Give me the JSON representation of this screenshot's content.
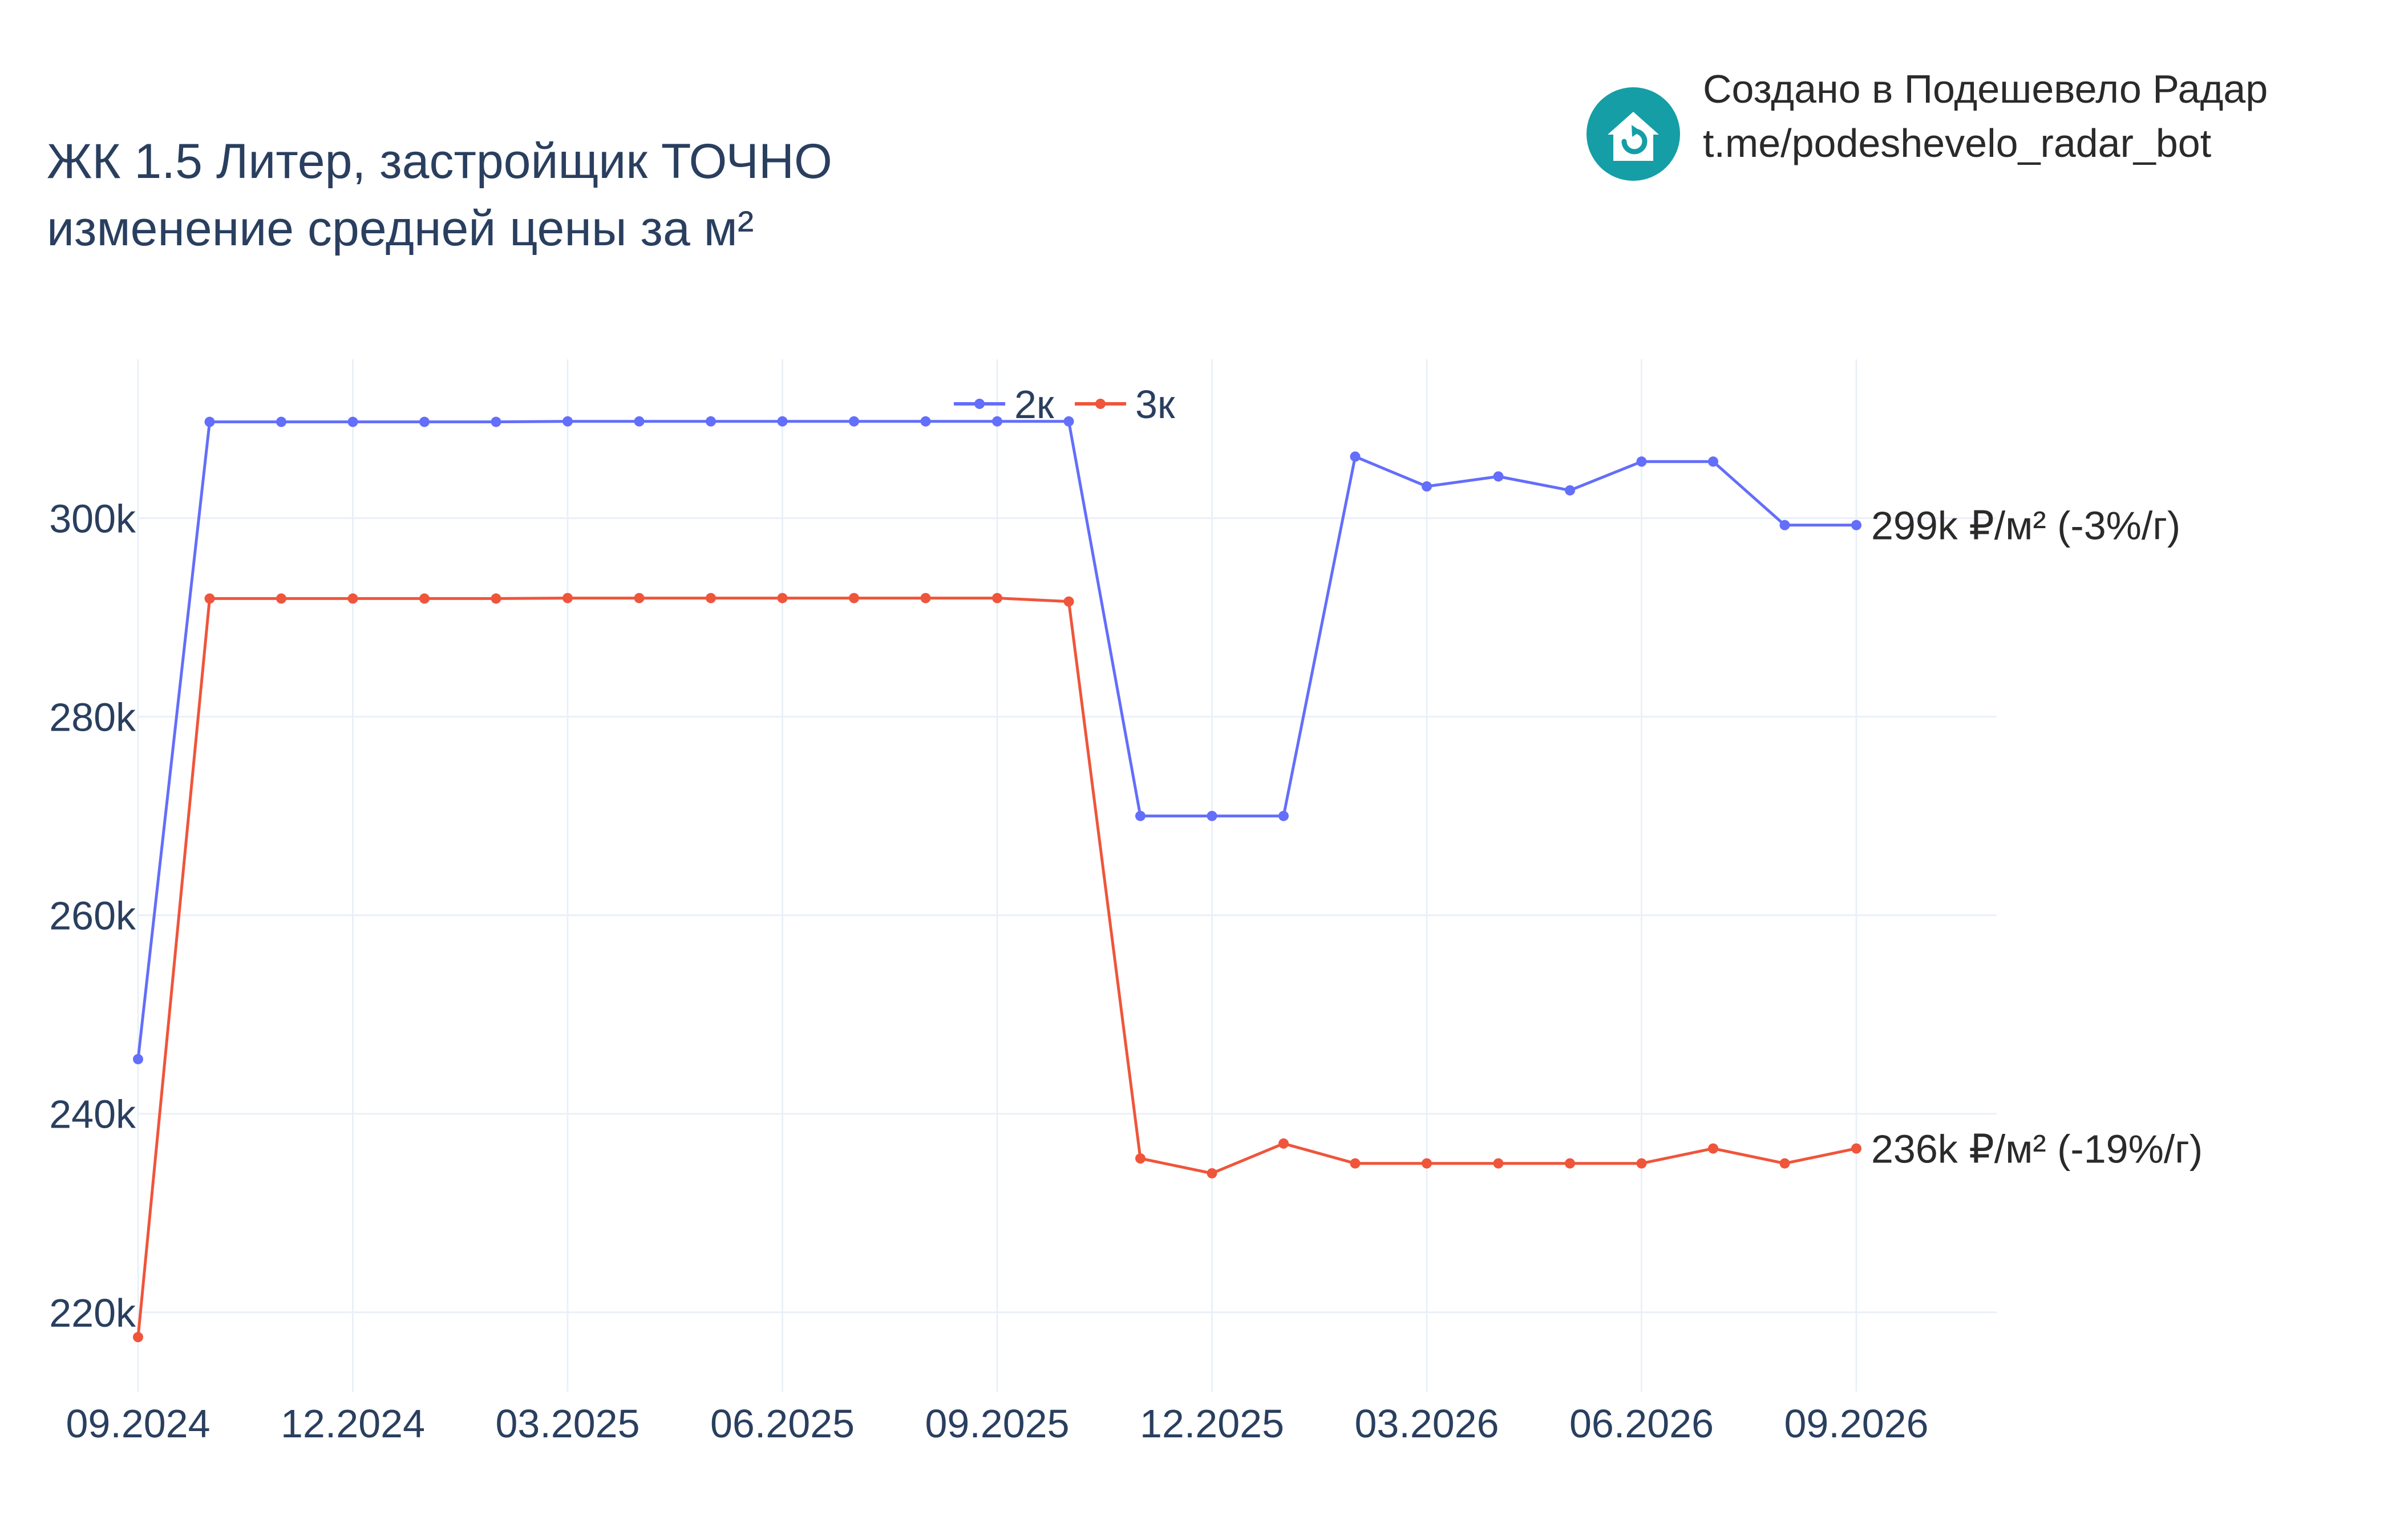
{
  "title": {
    "line1": "ЖК 1.5 Литер, застройщик ТОЧНО",
    "line2": "изменение средней цены за м²"
  },
  "brand": {
    "line1": "Создано в Подешевело Радар",
    "line2": "t.me/podeshevelo_radar_bot",
    "icon": "house-refresh-icon",
    "icon_color": "#159ea6"
  },
  "chart_data": {
    "type": "line",
    "x": [
      "09.2024",
      "10.2024",
      "11.2024",
      "12.2024",
      "01.2025",
      "02.2025",
      "03.2025",
      "04.2025",
      "05.2025",
      "06.2025",
      "07.2025",
      "08.2025",
      "09.2025",
      "10.2025",
      "11.2025",
      "12.2025",
      "01.2026",
      "02.2026",
      "03.2026",
      "04.2026",
      "05.2026",
      "06.2026",
      "07.2026",
      "08.2026",
      "09.2026"
    ],
    "x_tick_labels": [
      "09.2024",
      "12.2024",
      "03.2025",
      "06.2025",
      "09.2025",
      "12.2025",
      "03.2026",
      "06.2026",
      "09.2026"
    ],
    "y_tick_labels": [
      "220k",
      "240k",
      "260k",
      "280k",
      "300k"
    ],
    "y_ticks": [
      220000,
      240000,
      260000,
      280000,
      300000
    ],
    "ylim": [
      212000,
      316000
    ],
    "grid": true,
    "legend_position": "top-center",
    "series": [
      {
        "name": "2к",
        "color": "#636efa",
        "values": [
          245500,
          309700,
          309700,
          309700,
          309700,
          309700,
          309750,
          309750,
          309750,
          309750,
          309750,
          309750,
          309750,
          309750,
          270000,
          270000,
          270000,
          306200,
          303200,
          304200,
          302800,
          305700,
          305700,
          299300,
          299300
        ],
        "end_label": "299k ₽/м² (-3%/г)"
      },
      {
        "name": "3к",
        "color": "#ef553b",
        "values": [
          217500,
          291900,
          291900,
          291900,
          291900,
          291900,
          291950,
          291950,
          291950,
          291950,
          291950,
          291950,
          291950,
          291600,
          235500,
          234000,
          237000,
          235000,
          235000,
          235000,
          235000,
          235000,
          236500,
          235000,
          236500
        ],
        "end_label": "236k ₽/м² (-19%/г)"
      }
    ]
  }
}
